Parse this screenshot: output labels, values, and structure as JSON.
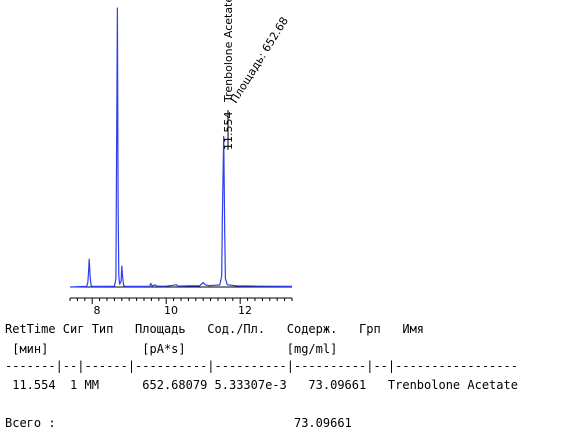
{
  "chart_data": {
    "type": "line",
    "x_range": [
      7.4,
      13.4
    ],
    "y_range": [
      0,
      100
    ],
    "x_ticks": [
      "8",
      "10",
      "12"
    ],
    "peak_annotation": {
      "retention_label": "11.554",
      "name_label": "Trenbolone Acetate",
      "area_label": "Площадь: 652.68"
    },
    "series": [
      {
        "color": "#2e3ef0",
        "points": [
          [
            7.4,
            0.0
          ],
          [
            7.85,
            0.2
          ],
          [
            7.88,
            1.5
          ],
          [
            7.9,
            5.0
          ],
          [
            7.92,
            10.0
          ],
          [
            7.95,
            3.0
          ],
          [
            7.97,
            0.6
          ],
          [
            8.0,
            0.2
          ],
          [
            8.4,
            0.2
          ],
          [
            8.6,
            0.3
          ],
          [
            8.64,
            3.0
          ],
          [
            8.66,
            50.0
          ],
          [
            8.68,
            100.0
          ],
          [
            8.7,
            30.0
          ],
          [
            8.72,
            4.0
          ],
          [
            8.74,
            1.0
          ],
          [
            8.78,
            2.0
          ],
          [
            8.8,
            7.5
          ],
          [
            8.82,
            4.0
          ],
          [
            8.85,
            0.5
          ],
          [
            8.9,
            0.2
          ],
          [
            9.55,
            0.2
          ],
          [
            9.58,
            1.3
          ],
          [
            9.62,
            0.4
          ],
          [
            9.7,
            0.8
          ],
          [
            9.75,
            0.3
          ],
          [
            10.0,
            0.3
          ],
          [
            10.28,
            0.8
          ],
          [
            10.32,
            0.3
          ],
          [
            10.6,
            0.4
          ],
          [
            10.9,
            0.4
          ],
          [
            11.0,
            1.6
          ],
          [
            11.05,
            0.8
          ],
          [
            11.15,
            0.5
          ],
          [
            11.3,
            0.6
          ],
          [
            11.45,
            0.7
          ],
          [
            11.5,
            4.0
          ],
          [
            11.52,
            26.0
          ],
          [
            11.554,
            54.0
          ],
          [
            11.58,
            20.0
          ],
          [
            11.6,
            3.0
          ],
          [
            11.65,
            0.8
          ],
          [
            11.9,
            0.4
          ],
          [
            12.5,
            0.3
          ],
          [
            13.4,
            0.2
          ]
        ]
      }
    ]
  },
  "table": {
    "header_line1": "RetTime Сиг Тип   Площадь   Сод./Пл.   Содерж.   Грп   Имя",
    "header_line2": " [мин]             [pA*s]              [mg/ml]",
    "separator": "-------|--|------|----------|----------|----------|--|-----------------",
    "row": " 11.554  1 MM      652.68079 5.33307e-3   73.09661   Trenbolone Acetate",
    "total_line": "Всего :                                 73.09661"
  }
}
